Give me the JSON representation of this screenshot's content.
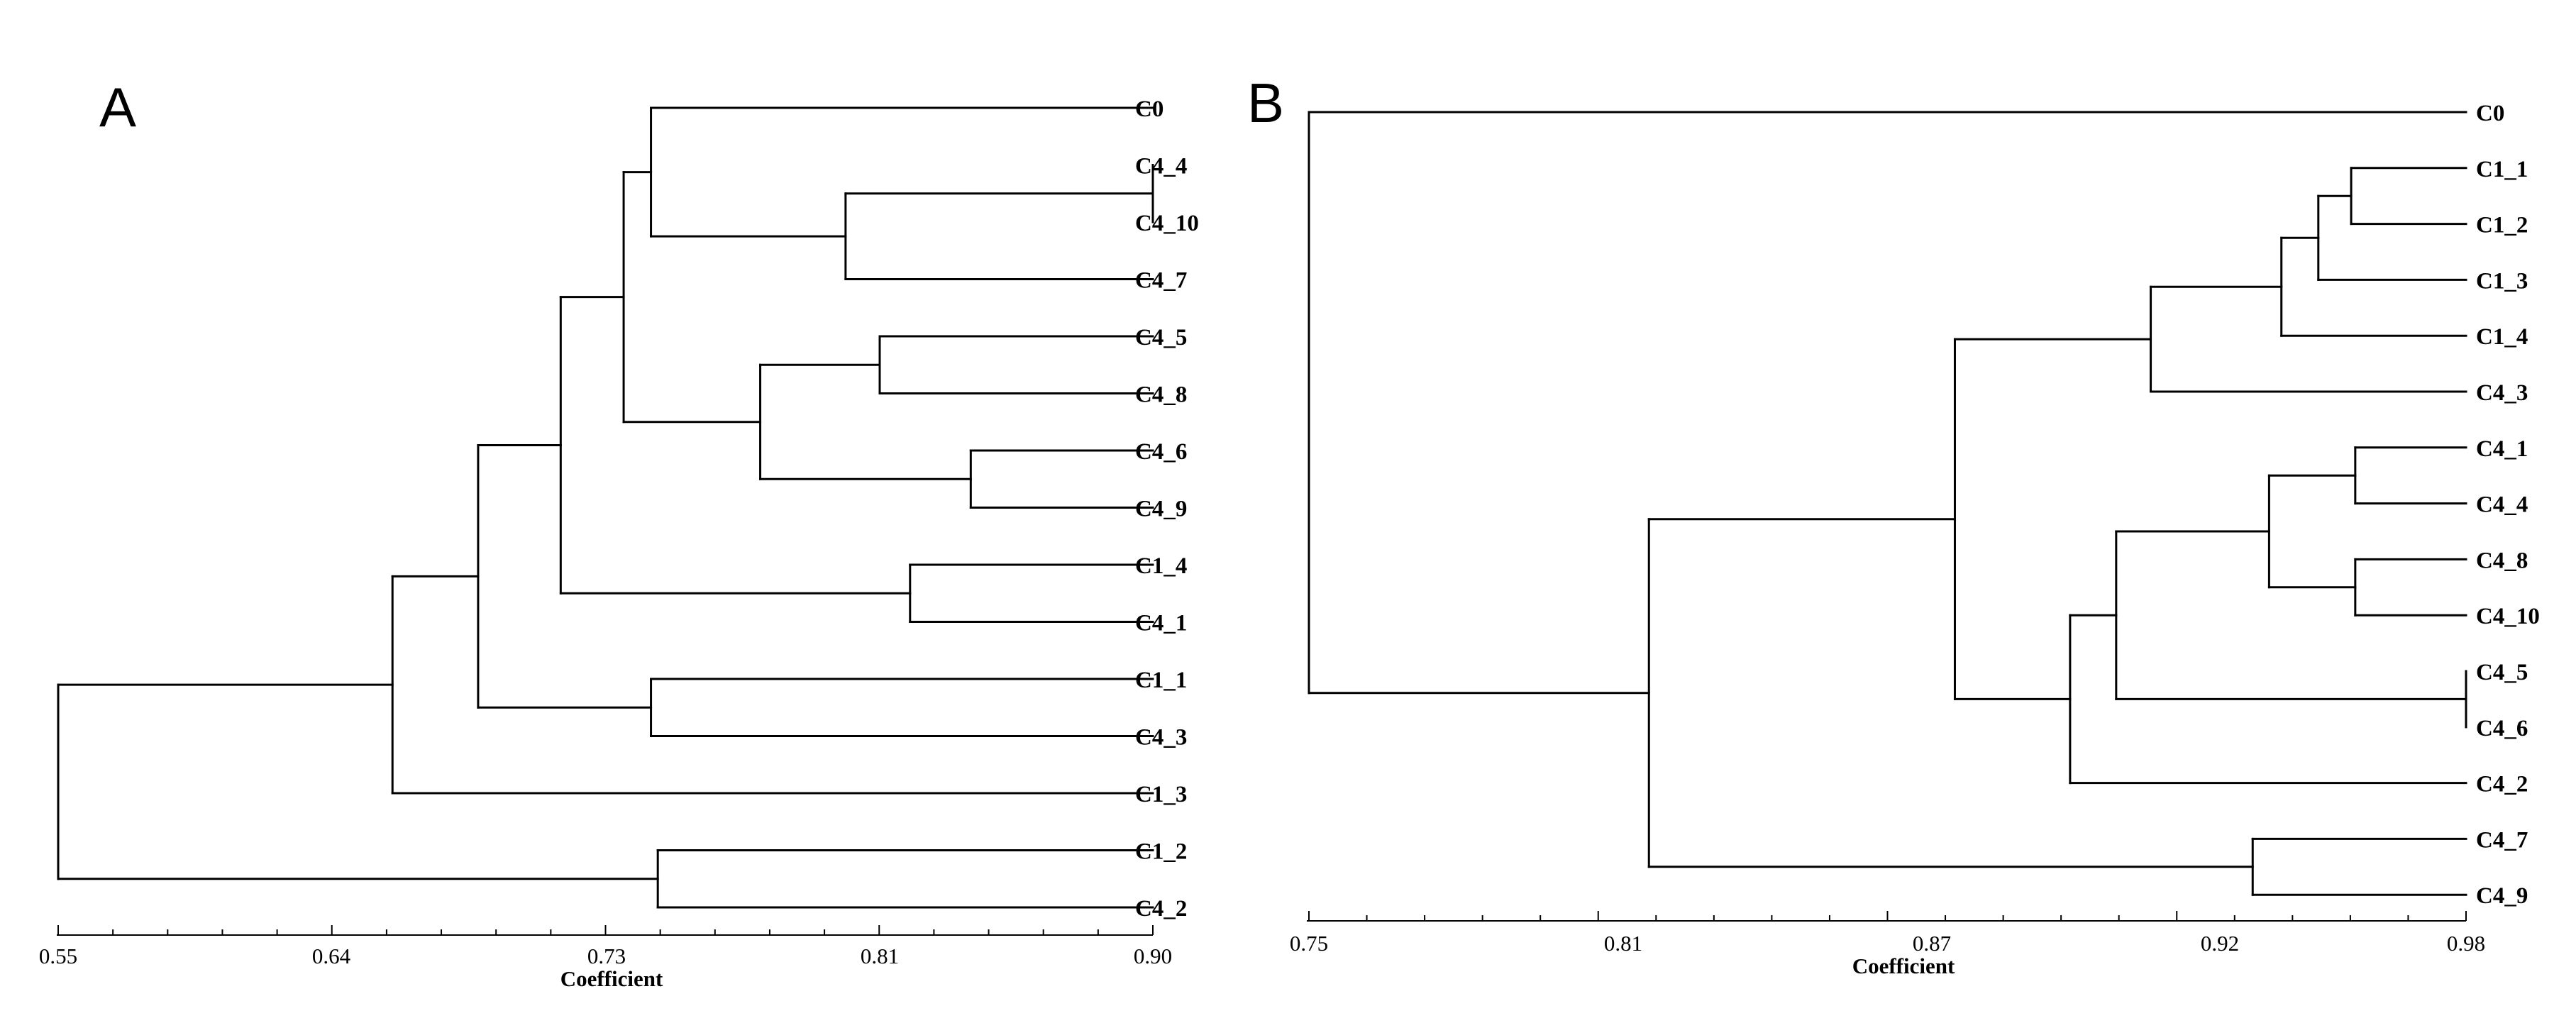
{
  "chart_data": [
    {
      "type": "dendrogram",
      "panel": "A",
      "xlabel": "Coefficient",
      "xlim": [
        0.55,
        0.9
      ],
      "ticks": [
        "0.55",
        "0.64",
        "0.73",
        "0.81",
        "0.90"
      ],
      "tick_values": [
        0.55,
        0.64,
        0.73,
        0.81,
        0.9
      ],
      "leaves": [
        "C0",
        "C4_4",
        "C4_10",
        "C4_7",
        "C4_5",
        "C4_8",
        "C4_6",
        "C4_9",
        "C1_4",
        "C4_1",
        "C1_1",
        "C4_3",
        "C1_3",
        "C1_2",
        "C4_2"
      ],
      "merges": [
        {
          "children": [
            "C4_4",
            "C4_10"
          ],
          "height": 0.9
        },
        {
          "children": [
            "C4_4+C4_10",
            "C4_7"
          ],
          "height": 0.8
        },
        {
          "children": [
            "C0",
            "C4_4+C4_10+C4_7"
          ],
          "height": 0.743
        },
        {
          "children": [
            "C4_5",
            "C4_8"
          ],
          "height": 0.81
        },
        {
          "children": [
            "C4_6",
            "C4_9"
          ],
          "height": 0.84
        },
        {
          "children": [
            "C4_5+C4_8",
            "C4_6+C4_9"
          ],
          "height": 0.775
        },
        {
          "children": [
            "C0-group",
            "C4_5..C4_9-group"
          ],
          "height": 0.735
        },
        {
          "children": [
            "C1_4",
            "C4_1"
          ],
          "height": 0.82
        },
        {
          "children": [
            "C0..C4_9-group",
            "C1_4+C4_1"
          ],
          "height": 0.715
        },
        {
          "children": [
            "C1_1",
            "C4_3"
          ],
          "height": 0.743
        },
        {
          "children": [
            "C0..C4_1-group",
            "C1_1+C4_3"
          ],
          "height": 0.688
        },
        {
          "children": [
            "C0..C4_3-group",
            "C1_3"
          ],
          "height": 0.66
        },
        {
          "children": [
            "C1_2",
            "C4_2"
          ],
          "height": 0.745
        },
        {
          "children": [
            "C0..C1_3-group",
            "C1_2+C4_2"
          ],
          "height": 0.55
        }
      ]
    },
    {
      "type": "dendrogram",
      "panel": "B",
      "xlabel": "Coefficient",
      "xlim": [
        0.75,
        0.98
      ],
      "ticks": [
        "0.75",
        "0.81",
        "0.87",
        "0.92",
        "0.98"
      ],
      "tick_values": [
        0.75,
        0.81,
        0.87,
        0.92,
        0.98
      ],
      "leaves": [
        "C0",
        "C1_1",
        "C1_2",
        "C1_3",
        "C1_4",
        "C4_3",
        "C4_1",
        "C4_4",
        "C4_8",
        "C4_10",
        "C4_5",
        "C4_6",
        "C4_2",
        "C4_7",
        "C4_9"
      ],
      "merges": [
        {
          "children": [
            "C1_1",
            "C1_2"
          ],
          "height": 0.952
        },
        {
          "children": [
            "C1_1+C1_2",
            "C1_3"
          ],
          "height": 0.944
        },
        {
          "children": [
            "C1_1..C1_3",
            "C1_4"
          ],
          "height": 0.935
        },
        {
          "children": [
            "C1_1..C1_4",
            "C4_3"
          ],
          "height": 0.908
        },
        {
          "children": [
            "C4_1",
            "C4_4"
          ],
          "height": 0.953
        },
        {
          "children": [
            "C4_8",
            "C4_10"
          ],
          "height": 0.953
        },
        {
          "children": [
            "C4_1+C4_4",
            "C4_8+C4_10"
          ],
          "height": 0.932
        },
        {
          "children": [
            "C4_5",
            "C4_6"
          ],
          "height": 0.98
        },
        {
          "children": [
            "C4_1..C4_10",
            "C4_5+C4_6"
          ],
          "height": 0.902
        },
        {
          "children": [
            "C4_1..C4_6",
            "C4_2"
          ],
          "height": 0.894
        },
        {
          "children": [
            "C1-group",
            "C4-group"
          ],
          "height": 0.874
        },
        {
          "children": [
            "C4_7",
            "C4_9"
          ],
          "height": 0.928
        },
        {
          "children": [
            "C1..C4_2-group",
            "C4_7+C4_9"
          ],
          "height": 0.815
        },
        {
          "children": [
            "C0",
            "rest"
          ],
          "height": 0.75
        }
      ]
    }
  ]
}
